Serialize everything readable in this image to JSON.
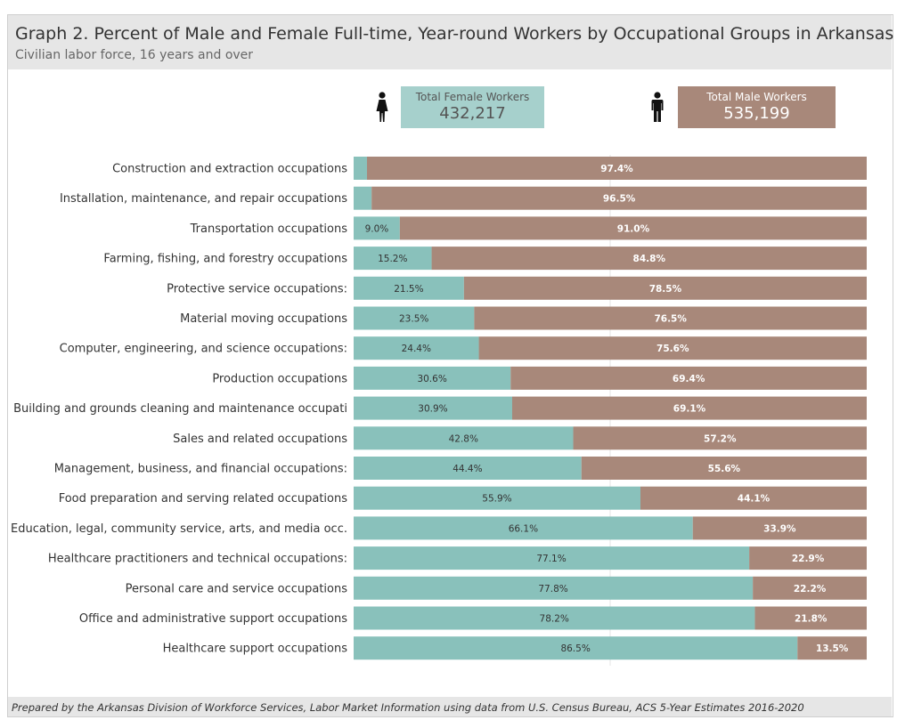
{
  "header": {
    "title": "Graph 2. Percent of Male and Female Full-time, Year-round Workers by Occupational Groups in Arkansas",
    "subtitle": "Civilian labor force, 16 years and over"
  },
  "kpis": {
    "female": {
      "label": "Total Female Workers",
      "value": "432,217",
      "icon": "female-person-icon"
    },
    "male": {
      "label": "Total Male Workers",
      "value": "535,199",
      "icon": "male-person-icon"
    }
  },
  "colors": {
    "female": "#89c1bb",
    "male": "#a8887a",
    "female_kpi_bg": "#a6d0cc"
  },
  "chart_data": {
    "type": "bar",
    "orientation": "horizontal",
    "stacked": true,
    "categories": [
      "Construction and extraction occupations",
      "Installation, maintenance, and repair occupations",
      "Transportation occupations",
      "Farming, fishing, and forestry occupations",
      "Protective service occupations:",
      "Material moving occupations",
      "Computer, engineering, and science occupations:",
      "Production occupations",
      "Building and grounds cleaning and maintenance occupati",
      "Sales and related occupations",
      "Management, business, and financial occupations:",
      "Food preparation and serving related occupations",
      "Education, legal, community service, arts, and media occ.",
      "Healthcare practitioners and technical occupations:",
      "Personal care and service occupations",
      "Office and administrative support occupations",
      "Healthcare support occupations"
    ],
    "series": [
      {
        "key": "female",
        "values": [
          2.6,
          3.5,
          9.0,
          15.2,
          21.5,
          23.5,
          24.4,
          30.6,
          30.9,
          42.8,
          44.4,
          55.9,
          66.1,
          77.1,
          77.8,
          78.2,
          86.5
        ],
        "labels": [
          "",
          "",
          "9.0%",
          "15.2%",
          "21.5%",
          "23.5%",
          "24.4%",
          "30.6%",
          "30.9%",
          "42.8%",
          "44.4%",
          "55.9%",
          "66.1%",
          "77.1%",
          "77.8%",
          "78.2%",
          "86.5%"
        ]
      },
      {
        "key": "male",
        "values": [
          97.4,
          96.5,
          91.0,
          84.8,
          78.5,
          76.5,
          75.6,
          69.4,
          69.1,
          57.2,
          55.6,
          44.1,
          33.9,
          22.9,
          22.2,
          21.8,
          13.5
        ],
        "labels": [
          "97.4%",
          "96.5%",
          "91.0%",
          "84.8%",
          "78.5%",
          "76.5%",
          "75.6%",
          "69.4%",
          "69.1%",
          "57.2%",
          "55.6%",
          "44.1%",
          "33.9%",
          "22.9%",
          "22.2%",
          "21.8%",
          "13.5%"
        ]
      }
    ],
    "xlim": [
      0,
      100
    ],
    "grid": true
  },
  "footer": {
    "text": "Prepared by the Arkansas Division of Workforce Services, Labor Market Information using data from U.S. Census Bureau, ACS 5-Year Estimates 2016-2020"
  }
}
